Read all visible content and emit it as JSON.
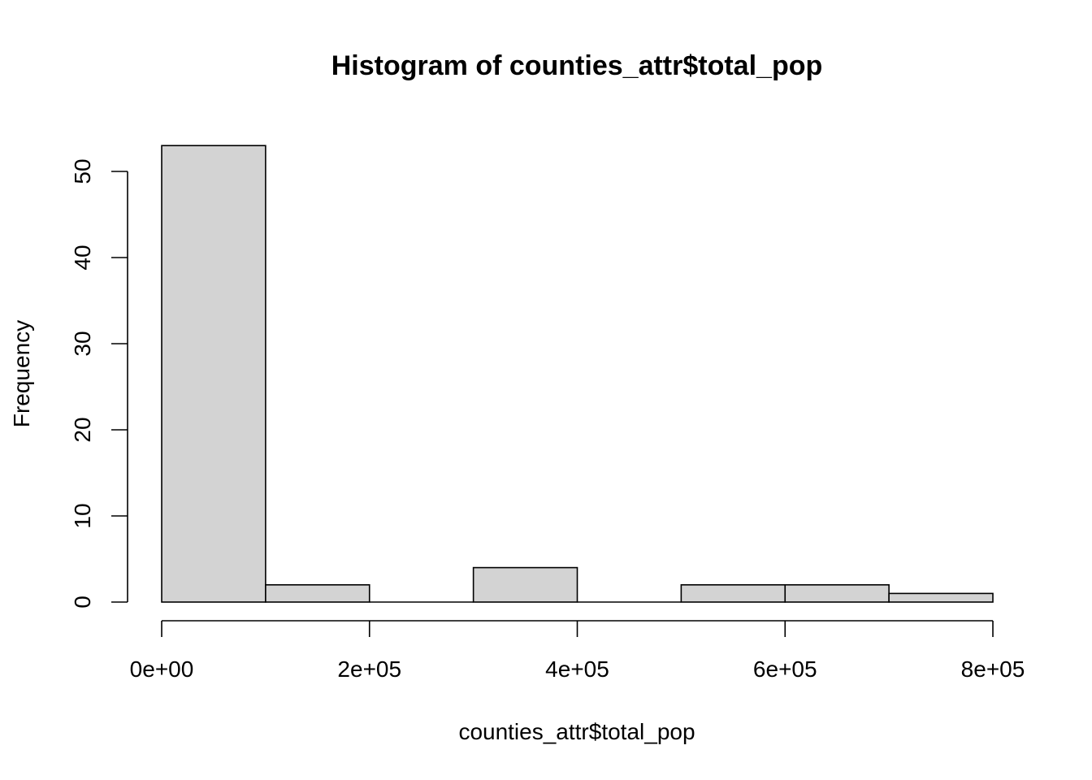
{
  "chart_data": {
    "type": "bar",
    "title": "Histogram of counties_attr$total_pop",
    "xlabel": "counties_attr$total_pop",
    "ylabel": "Frequency",
    "bins": [
      {
        "start": 0,
        "end": 100000,
        "count": 53
      },
      {
        "start": 100000,
        "end": 200000,
        "count": 2
      },
      {
        "start": 200000,
        "end": 300000,
        "count": 0
      },
      {
        "start": 300000,
        "end": 400000,
        "count": 4
      },
      {
        "start": 400000,
        "end": 500000,
        "count": 0
      },
      {
        "start": 500000,
        "end": 600000,
        "count": 2
      },
      {
        "start": 600000,
        "end": 700000,
        "count": 2
      },
      {
        "start": 700000,
        "end": 800000,
        "count": 1
      }
    ],
    "xlim": [
      0,
      800000
    ],
    "ylim": [
      0,
      53
    ],
    "x_ticks": [
      {
        "value": 0,
        "label": "0e+00"
      },
      {
        "value": 200000,
        "label": "2e+05"
      },
      {
        "value": 400000,
        "label": "4e+05"
      },
      {
        "value": 600000,
        "label": "6e+05"
      },
      {
        "value": 800000,
        "label": "8e+05"
      }
    ],
    "y_ticks": [
      {
        "value": 0,
        "label": "0"
      },
      {
        "value": 10,
        "label": "10"
      },
      {
        "value": 20,
        "label": "20"
      },
      {
        "value": 30,
        "label": "30"
      },
      {
        "value": 40,
        "label": "40"
      },
      {
        "value": 50,
        "label": "50"
      }
    ],
    "bar_color": "#d3d3d3",
    "grid": false,
    "legend": "none"
  }
}
